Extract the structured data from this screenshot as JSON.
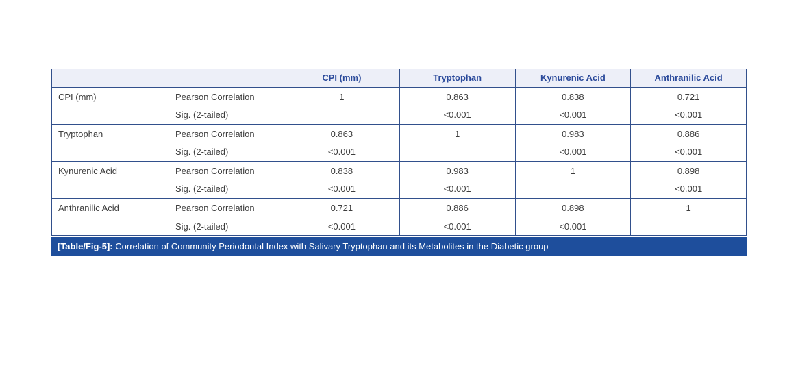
{
  "table": {
    "columns": [
      "",
      "",
      "CPI (mm)",
      "Tryptophan",
      "Kynurenic Acid",
      "Anthranilic Acid"
    ],
    "rows": [
      {
        "variable": "CPI (mm)",
        "measure": "Pearson Correlation",
        "values": [
          "1",
          "0.863",
          "0.838",
          "0.721"
        ]
      },
      {
        "variable": "",
        "measure": "Sig. (2-tailed)",
        "values": [
          "",
          "<0.001",
          "<0.001",
          "<0.001"
        ]
      },
      {
        "variable": "Tryptophan",
        "measure": "Pearson Correlation",
        "values": [
          "0.863",
          "1",
          "0.983",
          "0.886"
        ]
      },
      {
        "variable": "",
        "measure": "Sig. (2-tailed)",
        "values": [
          "<0.001",
          "",
          "<0.001",
          "<0.001"
        ]
      },
      {
        "variable": "Kynurenic Acid",
        "measure": "Pearson Correlation",
        "values": [
          "0.838",
          "0.983",
          "1",
          "0.898"
        ]
      },
      {
        "variable": "",
        "measure": "Sig. (2-tailed)",
        "values": [
          "<0.001",
          "<0.001",
          "",
          "<0.001"
        ]
      },
      {
        "variable": "Anthranilic Acid",
        "measure": "Pearson Correlation",
        "values": [
          "0.721",
          "0.886",
          "0.898",
          "1"
        ]
      },
      {
        "variable": "",
        "measure": "Sig. (2-tailed)",
        "values": [
          "<0.001",
          "<0.001",
          "<0.001",
          ""
        ]
      }
    ],
    "caption_label": "[Table/Fig-5]:",
    "caption_text": " Correlation of Community Periodontal Index with Salivary Tryptophan and its Metabolites in the Diabetic group"
  },
  "chart_data": {
    "type": "table",
    "title": "[Table/Fig-5]: Correlation of Community Periodontal Index with Salivary Tryptophan and its Metabolites in the Diabetic group",
    "variables": [
      "CPI (mm)",
      "Tryptophan",
      "Kynurenic Acid",
      "Anthranilic Acid"
    ],
    "pearson_correlation_matrix": [
      [
        1,
        0.863,
        0.838,
        0.721
      ],
      [
        0.863,
        1,
        0.983,
        0.886
      ],
      [
        0.838,
        0.983,
        1,
        0.898
      ],
      [
        0.721,
        0.886,
        0.898,
        1
      ]
    ],
    "sig_2_tailed_matrix": [
      [
        null,
        "<0.001",
        "<0.001",
        "<0.001"
      ],
      [
        "<0.001",
        null,
        "<0.001",
        "<0.001"
      ],
      [
        "<0.001",
        "<0.001",
        null,
        "<0.001"
      ],
      [
        "<0.001",
        "<0.001",
        "<0.001",
        null
      ]
    ]
  },
  "colors": {
    "header_bg": "#edeff8",
    "header_text": "#2b4a9b",
    "border_strong": "#32508c",
    "border_light": "#a9b7d6",
    "caption_bg": "#1e4e9c",
    "caption_text": "#ffffff",
    "body_text": "#3d3d3d"
  }
}
